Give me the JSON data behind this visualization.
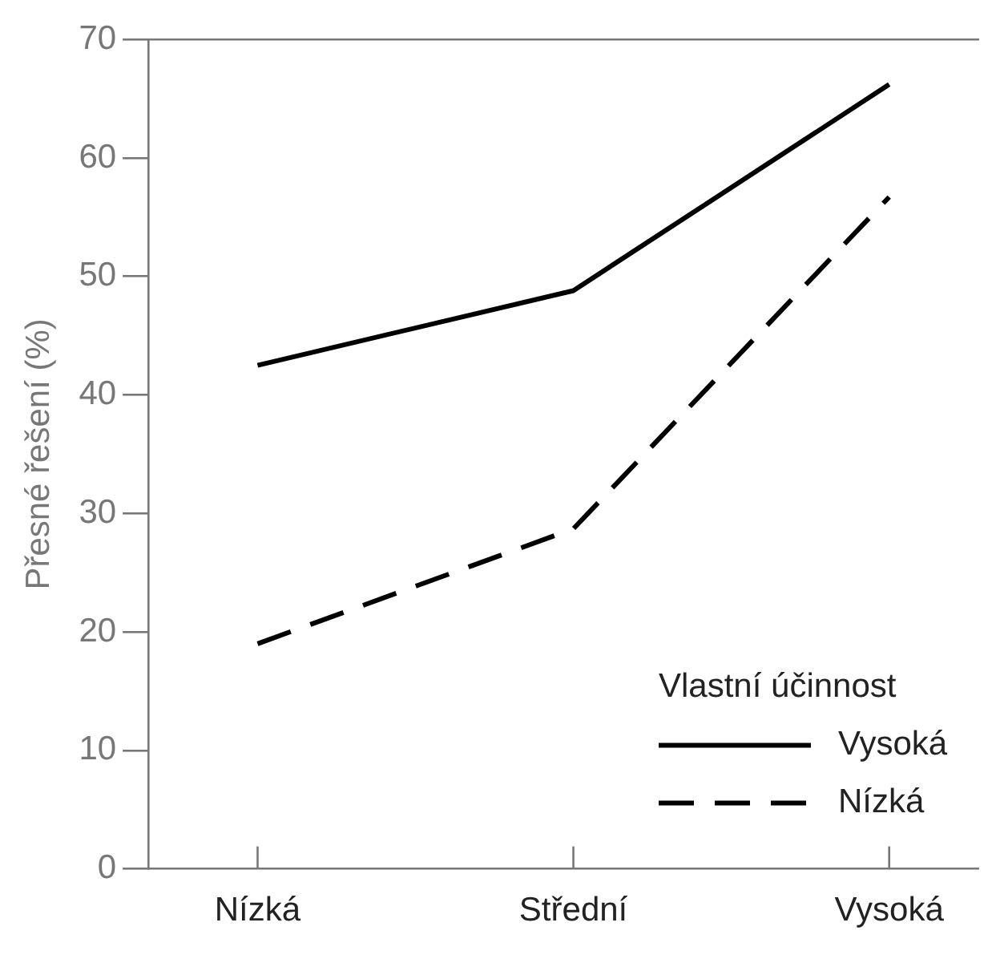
{
  "chart_data": {
    "type": "line",
    "ylabel": "Přesné řešení (%)",
    "legend_title": "Vlastní účinnost",
    "categories": [
      "Nízká",
      "Střední",
      "Vysoká"
    ],
    "series": [
      {
        "name": "Vysoká",
        "color": "#000000",
        "line_style": "solid",
        "values": [
          42.5,
          48.8,
          66.2
        ]
      },
      {
        "name": "Nízká",
        "color": "#000000",
        "line_style": "dashed",
        "values": [
          19.0,
          28.7,
          56.7
        ]
      }
    ],
    "ylim": [
      0,
      70
    ],
    "yticks": [
      0,
      10,
      20,
      30,
      40,
      50,
      60,
      70
    ],
    "grid": false,
    "legend": "bottom right",
    "marker": "none"
  }
}
